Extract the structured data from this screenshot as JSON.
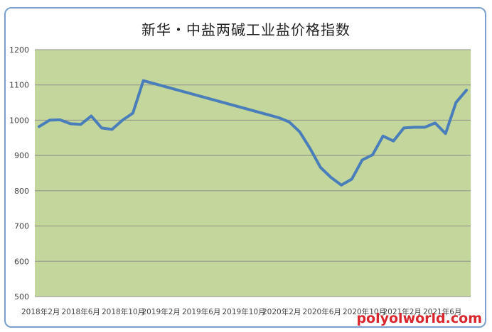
{
  "chart_data": {
    "type": "line",
    "title": "新华・中盐两碱工业盐价格指数",
    "xlabel": "",
    "ylabel": "",
    "ylim": [
      500,
      1200
    ],
    "yticks": [
      500,
      600,
      700,
      800,
      900,
      1000,
      1100,
      1200
    ],
    "xtick_labels": [
      "2018年2月",
      "2018年6月",
      "2018年10月",
      "2019年2月",
      "2019年6月",
      "2019年10月",
      "2020年2月",
      "2020年6月",
      "2020年10月",
      "2021年2月",
      "2021年6月"
    ],
    "grid": true,
    "colors": {
      "plot_bg": "#c3d69b",
      "line": "#4a7ebb",
      "grid": "#8f8f8f"
    },
    "series": [
      {
        "values": [
          {
            "x": "2018-02",
            "y": 982
          },
          {
            "x": "2018-03",
            "y": 1000
          },
          {
            "x": "2018-04",
            "y": 1001
          },
          {
            "x": "2018-05",
            "y": 990
          },
          {
            "x": "2018-06",
            "y": 988
          },
          {
            "x": "2018-07",
            "y": 1012
          },
          {
            "x": "2018-08",
            "y": 978
          },
          {
            "x": "2018-09",
            "y": 974
          },
          {
            "x": "2018-10",
            "y": 1000
          },
          {
            "x": "2018-11",
            "y": 1020
          },
          {
            "x": "2018-12",
            "y": 1112
          },
          {
            "x": "2020-01",
            "y": 1007
          },
          {
            "x": "2020-02",
            "y": 995
          },
          {
            "x": "2020-03",
            "y": 967
          },
          {
            "x": "2020-04",
            "y": 920
          },
          {
            "x": "2020-05",
            "y": 866
          },
          {
            "x": "2020-06",
            "y": 838
          },
          {
            "x": "2020-07",
            "y": 816
          },
          {
            "x": "2020-08",
            "y": 833
          },
          {
            "x": "2020-09",
            "y": 887
          },
          {
            "x": "2020-10",
            "y": 902
          },
          {
            "x": "2020-11",
            "y": 955
          },
          {
            "x": "2020-12",
            "y": 941
          },
          {
            "x": "2021-01",
            "y": 978
          },
          {
            "x": "2021-02",
            "y": 980
          },
          {
            "x": "2021-03",
            "y": 980
          },
          {
            "x": "2021-04",
            "y": 992
          },
          {
            "x": "2021-05",
            "y": 962
          },
          {
            "x": "2021-06",
            "y": 1050
          },
          {
            "x": "2021-07",
            "y": 1085
          }
        ]
      }
    ]
  },
  "watermark": "polyolworld.com"
}
